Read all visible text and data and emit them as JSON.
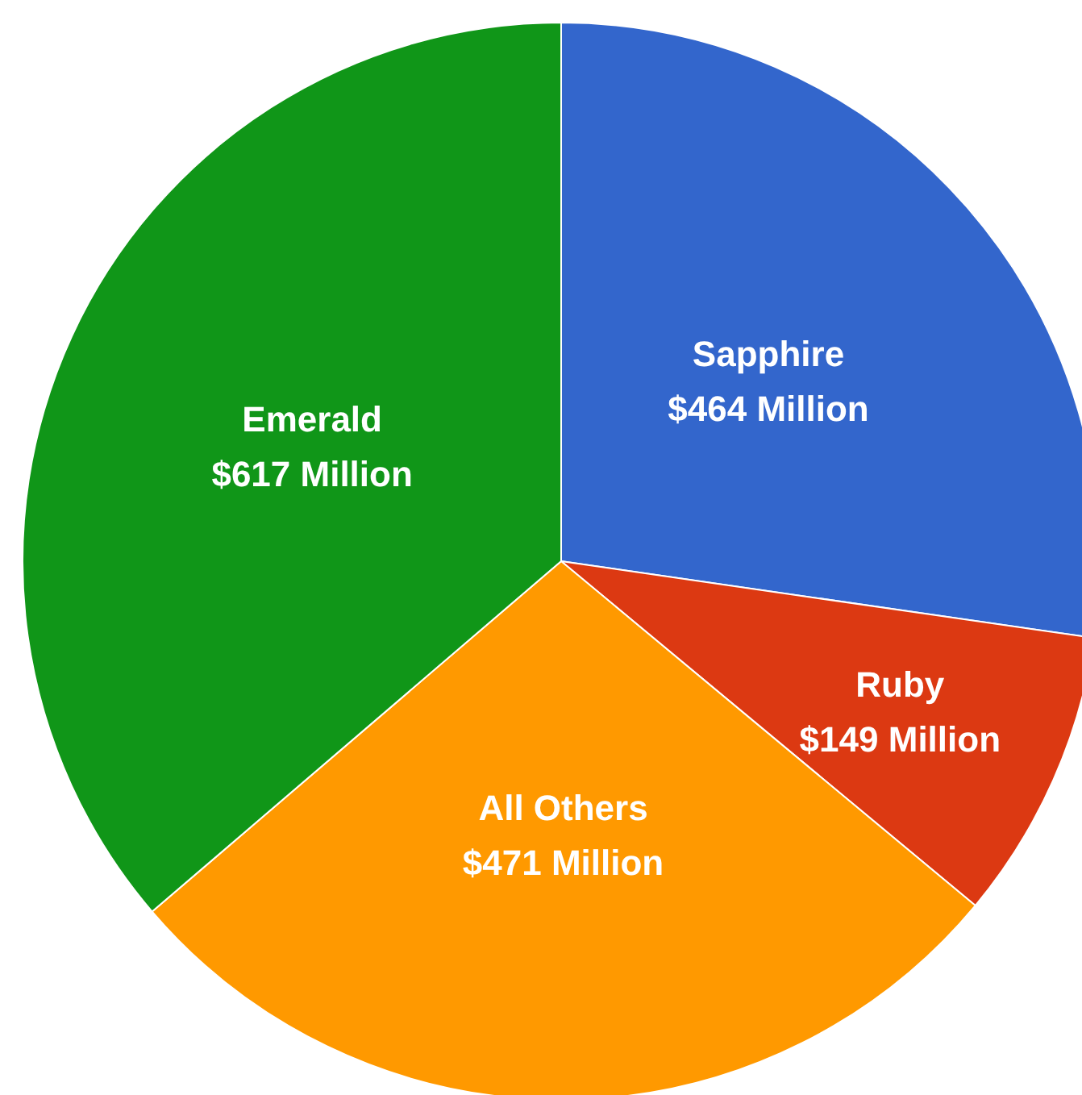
{
  "chart_data": {
    "type": "pie",
    "categories": [
      "Sapphire",
      "Ruby",
      "All Others",
      "Emerald"
    ],
    "values": [
      464,
      149,
      471,
      617
    ],
    "value_labels": [
      "$464 Million",
      "$149 Million",
      "$471 Million",
      "$617 Million"
    ],
    "colors": [
      "#3366cc",
      "#dc3912",
      "#ff9900",
      "#109618"
    ],
    "legend": false
  }
}
